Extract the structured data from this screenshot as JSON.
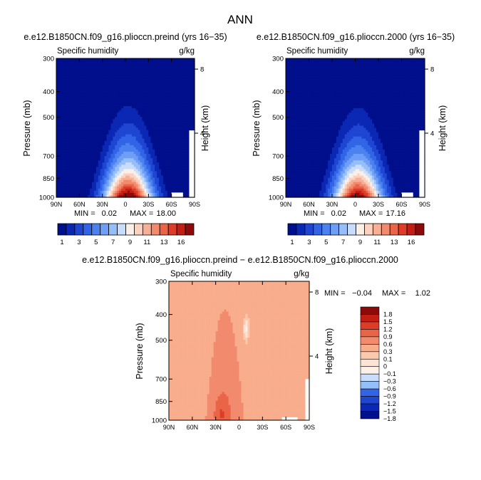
{
  "page_title": "ANN",
  "colors": {
    "full_scale": [
      "#000f8c",
      "#0a28b4",
      "#1e46d2",
      "#3264e6",
      "#4b82f0",
      "#6e9ef5",
      "#96bef9",
      "#c8dcfb",
      "#fbf0e8",
      "#fad2bf",
      "#f7b096",
      "#f28a6e",
      "#ea6448",
      "#dc3c28",
      "#c41e14",
      "#8c0a0a"
    ],
    "diff_scale": [
      "#000f8c",
      "#0a28b4",
      "#1e46d2",
      "#3264e6",
      "#96bef9",
      "#c8dcfb",
      "#fdf0e8",
      "#fde3d3",
      "#fbc9ae",
      "#f8ad8c",
      "#f28a6e",
      "#ea6448",
      "#dc3c28",
      "#c41e14",
      "#8c0a0a"
    ]
  },
  "chart_data": [
    {
      "id": "left",
      "type": "heatmap",
      "title": "e.e12.B1850CN.f09_g16.plioccn.preind (yrs 16−35)",
      "subtitle_left": "Specific humidity",
      "subtitle_right": "g/kg",
      "ylabel": "Pressure (mb)",
      "ylabel_right": "Height (km)",
      "x_ticks": [
        "90N",
        "60N",
        "30N",
        "0",
        "30S",
        "60S",
        "90S"
      ],
      "x_values": [
        90,
        60,
        30,
        0,
        -30,
        -60,
        -90
      ],
      "xlim": [
        90,
        -90
      ],
      "y_ticks": [
        "300",
        "400",
        "500",
        "700",
        "850",
        "1000"
      ],
      "y_values": [
        300,
        400,
        500,
        700,
        850,
        1000
      ],
      "ylim": [
        300,
        1000
      ],
      "right_ticks": [
        "8",
        "4"
      ],
      "right_values": [
        8,
        4
      ],
      "min_label": "MIN =",
      "min_value": "0.02",
      "max_label": "MAX =",
      "max_value": "18.00",
      "peak": 18.0,
      "levels": [
        1,
        2,
        3,
        4,
        5,
        6,
        7,
        8,
        9,
        10,
        11,
        12,
        13,
        14,
        15,
        16
      ],
      "colorbar_labels": [
        "1",
        "3",
        "5",
        "7",
        "9",
        "11",
        "13",
        "16"
      ]
    },
    {
      "id": "right",
      "type": "heatmap",
      "title": "e.e12.B1850CN.f09_g16.plioccn.2000 (yrs 16−35)",
      "subtitle_left": "Specific humidity",
      "subtitle_right": "g/kg",
      "ylabel": "Pressure (mb)",
      "ylabel_right": "Height (km)",
      "x_ticks": [
        "90N",
        "60N",
        "30N",
        "0",
        "30S",
        "60S",
        "90S"
      ],
      "x_values": [
        90,
        60,
        30,
        0,
        -30,
        -60,
        -90
      ],
      "xlim": [
        90,
        -90
      ],
      "y_ticks": [
        "300",
        "400",
        "500",
        "700",
        "850",
        "1000"
      ],
      "y_values": [
        300,
        400,
        500,
        700,
        850,
        1000
      ],
      "ylim": [
        300,
        1000
      ],
      "right_ticks": [
        "8",
        "4"
      ],
      "right_values": [
        8,
        4
      ],
      "min_label": "MIN =",
      "min_value": "0.02",
      "max_label": "MAX =",
      "max_value": "17.16",
      "peak": 17.16,
      "levels": [
        1,
        2,
        3,
        4,
        5,
        6,
        7,
        8,
        9,
        10,
        11,
        12,
        13,
        14,
        15,
        16
      ],
      "colorbar_labels": [
        "1",
        "3",
        "5",
        "7",
        "9",
        "11",
        "13",
        "16"
      ]
    },
    {
      "id": "diff",
      "type": "heatmap",
      "title": "e.e12.B1850CN.f09_g16.plioccn.preind − e.e12.B1850CN.f09_g16.plioccn.2000",
      "subtitle_left": "Specific humidity",
      "subtitle_right": "g/kg",
      "ylabel": "Pressure (mb)",
      "ylabel_right": "Height (km)",
      "x_ticks": [
        "90N",
        "60N",
        "30N",
        "0",
        "30S",
        "60S",
        "90S"
      ],
      "x_values": [
        90,
        60,
        30,
        0,
        -30,
        -60,
        -90
      ],
      "xlim": [
        90,
        -90
      ],
      "y_ticks": [
        "300",
        "400",
        "500",
        "700",
        "850",
        "1000"
      ],
      "y_values": [
        300,
        400,
        500,
        700,
        850,
        1000
      ],
      "ylim": [
        300,
        1000
      ],
      "right_ticks": [
        "8",
        "4"
      ],
      "right_values": [
        8,
        4
      ],
      "min_label": "MIN =",
      "min_value": "−0.04",
      "max_label": "MAX =",
      "max_value": "1.02",
      "levels": [
        -1.8,
        -1.5,
        -1.2,
        -0.9,
        -0.6,
        -0.3,
        -0.1,
        0,
        0.1,
        0.3,
        0.6,
        0.9,
        1.2,
        1.5,
        1.8
      ],
      "colorbar_labels": [
        "1.8",
        "1.5",
        "1.2",
        "0.9",
        "0.6",
        "0.3",
        "0.1",
        "0",
        "−0.1",
        "−0.3",
        "−0.6",
        "−0.9",
        "−1.2",
        "−1.5",
        "−1.8"
      ]
    }
  ]
}
